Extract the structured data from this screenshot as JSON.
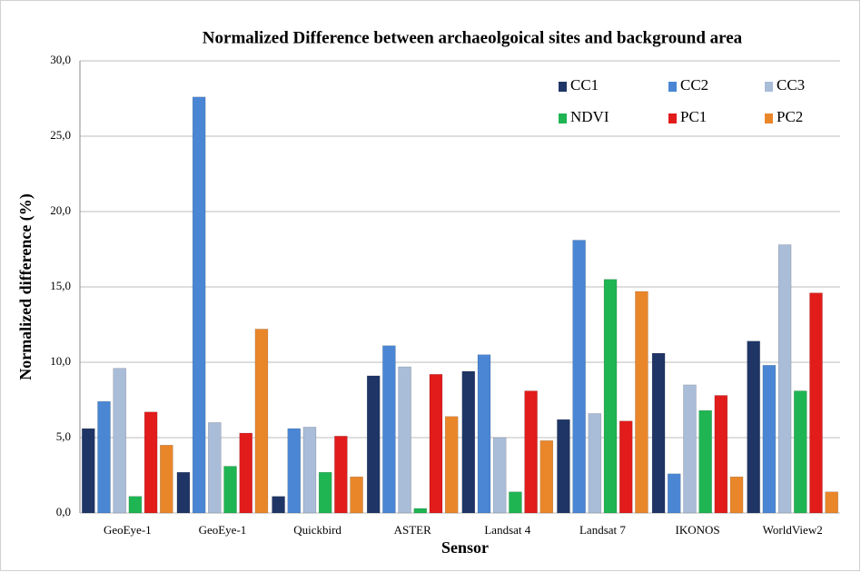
{
  "chart_data": {
    "type": "bar",
    "title": "Normalized  Difference between archaeolgoical sites and background area",
    "xlabel": "Sensor",
    "ylabel": "Normalized difference (%)",
    "categories": [
      "GeoEye-1",
      "GeoEye-1",
      "Quickbird",
      "ASTER",
      "Landsat 4",
      "Landsat 7",
      "IKONOS",
      "WorldView2"
    ],
    "series": [
      {
        "name": "CC1",
        "color": "#1f3566",
        "values": [
          5.6,
          2.7,
          1.1,
          9.1,
          9.4,
          6.2,
          10.6,
          11.4
        ]
      },
      {
        "name": "CC2",
        "color": "#4a86d4",
        "values": [
          7.4,
          27.6,
          5.6,
          11.1,
          10.5,
          18.1,
          2.6,
          9.8
        ]
      },
      {
        "name": "CC3",
        "color": "#a9bcd8",
        "values": [
          9.6,
          6.0,
          5.7,
          9.7,
          5.0,
          6.6,
          8.5,
          17.8
        ]
      },
      {
        "name": "NDVI",
        "color": "#1fb552",
        "values": [
          1.1,
          3.1,
          2.7,
          0.3,
          1.4,
          15.5,
          6.8,
          8.1
        ]
      },
      {
        "name": "PC1",
        "color": "#e21b1b",
        "values": [
          6.7,
          5.3,
          5.1,
          9.2,
          8.1,
          6.1,
          7.8,
          14.6
        ]
      },
      {
        "name": "PC2",
        "color": "#ea862a",
        "values": [
          4.5,
          12.2,
          2.4,
          6.4,
          4.8,
          14.7,
          2.4,
          1.4
        ]
      }
    ],
    "ylim": [
      0,
      30
    ],
    "yticks": [
      {
        "value": 0,
        "label": "0,0"
      },
      {
        "value": 5,
        "label": "5,0"
      },
      {
        "value": 10,
        "label": "10,0"
      },
      {
        "value": 15,
        "label": "15,0"
      },
      {
        "value": 20,
        "label": "20,0"
      },
      {
        "value": 25,
        "label": "25,0"
      },
      {
        "value": 30,
        "label": "30,0"
      }
    ],
    "grid": true,
    "legend": "upper right"
  }
}
